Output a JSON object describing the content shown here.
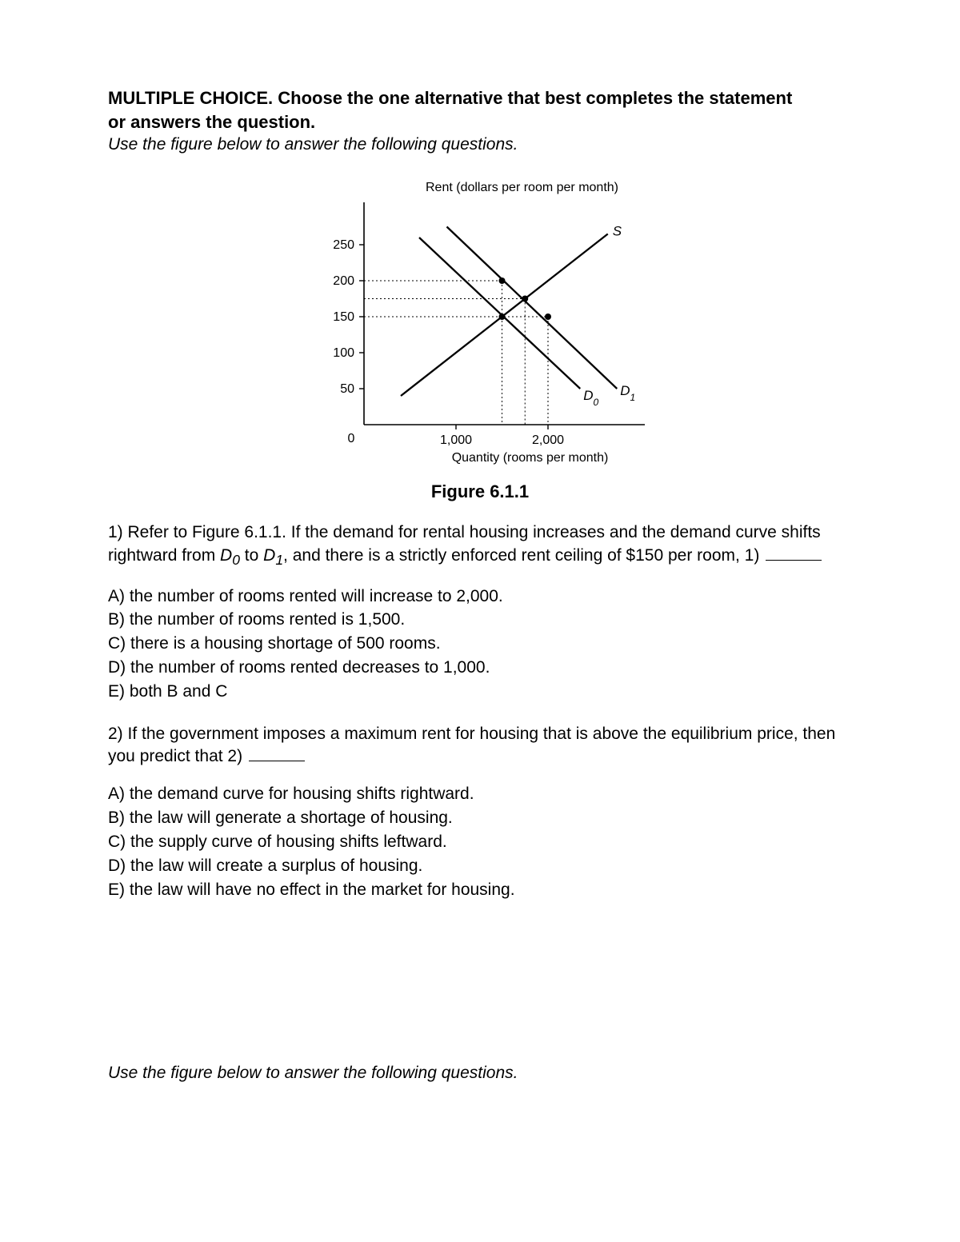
{
  "header": {
    "line1": "MULTIPLE CHOICE.  Choose the one alternative that best completes the statement",
    "line2": "or answers the question.",
    "instr": "Use the figure below to answer the following questions."
  },
  "figure": {
    "caption": "Figure 6.1.1",
    "y_axis_title": "Rent (dollars per room per month)",
    "x_axis_title": "Quantity (rooms per month)",
    "y_ticks": [
      "250",
      "200",
      "150",
      "100",
      "50"
    ],
    "y_tick_values": [
      250,
      200,
      150,
      100,
      50
    ],
    "x_ticks": [
      "1,000",
      "2,000"
    ],
    "x_tick_values": [
      1000,
      2000
    ],
    "origin_label": "0",
    "curves": {
      "supply_label": "S",
      "demand0_label": "D",
      "demand0_sub": "0",
      "demand1_label": "D",
      "demand1_sub": "1"
    },
    "chart": {
      "type": "line-econ",
      "xlim": [
        0,
        3000
      ],
      "ylim": [
        0,
        300
      ],
      "line_color": "#000000",
      "line_width": 2.3,
      "dotted_color": "#000000",
      "dotted_dash": "2,3",
      "point_radius": 4,
      "background_color": "#ffffff",
      "title_fontsize": 16,
      "tick_fontsize": 16,
      "supply_line": {
        "x1": 400,
        "y1": 40,
        "x2": 2650,
        "y2": 265
      },
      "demand0_line": {
        "x1": 600,
        "y1": 260,
        "x2": 2350,
        "y2": 50
      },
      "demand1_line": {
        "x1": 900,
        "y1": 275,
        "x2": 2750,
        "y2": 50
      },
      "points": [
        {
          "x": 1500,
          "y": 150
        },
        {
          "x": 2000,
          "y": 150
        },
        {
          "x": 1500,
          "y": 200
        },
        {
          "x": 1750,
          "y": 175
        }
      ],
      "guide_lines_h": [
        150,
        175,
        200
      ],
      "guide_lines_v": [
        1500,
        1750,
        2000
      ]
    }
  },
  "q1": {
    "text_a": "1) Refer to Figure 6.1.1. If the demand for rental housing increases and the demand curve shifts rightward from ",
    "d0": "D",
    "d0_sub": "0",
    "mid": " to ",
    "d1": "D",
    "d1_sub": "1",
    "text_b": ", and there is a strictly enforced rent ceiling of $150 per room,  1)",
    "options": {
      "A": "A) the number of rooms rented will increase to 2,000.",
      "B": "B) the number of rooms rented is 1,500.",
      "C": "C) there is a housing shortage of 500 rooms.",
      "D": "D) the number of rooms rented decreases to 1,000.",
      "E": "E) both B and C"
    }
  },
  "q2": {
    "text": "2) If the government imposes a maximum rent for housing that is above the equilibrium price, then you predict that 2)",
    "options": {
      "A": "A) the demand curve for housing shifts rightward.",
      "B": "B) the law will generate a shortage of housing.",
      "C": "C) the supply curve of housing shifts leftward.",
      "D": "D) the law will create a surplus of housing.",
      "E": "E) the law will have no effect in the market for housing."
    }
  },
  "footer": {
    "instr": "Use the figure below to answer the following questions."
  }
}
